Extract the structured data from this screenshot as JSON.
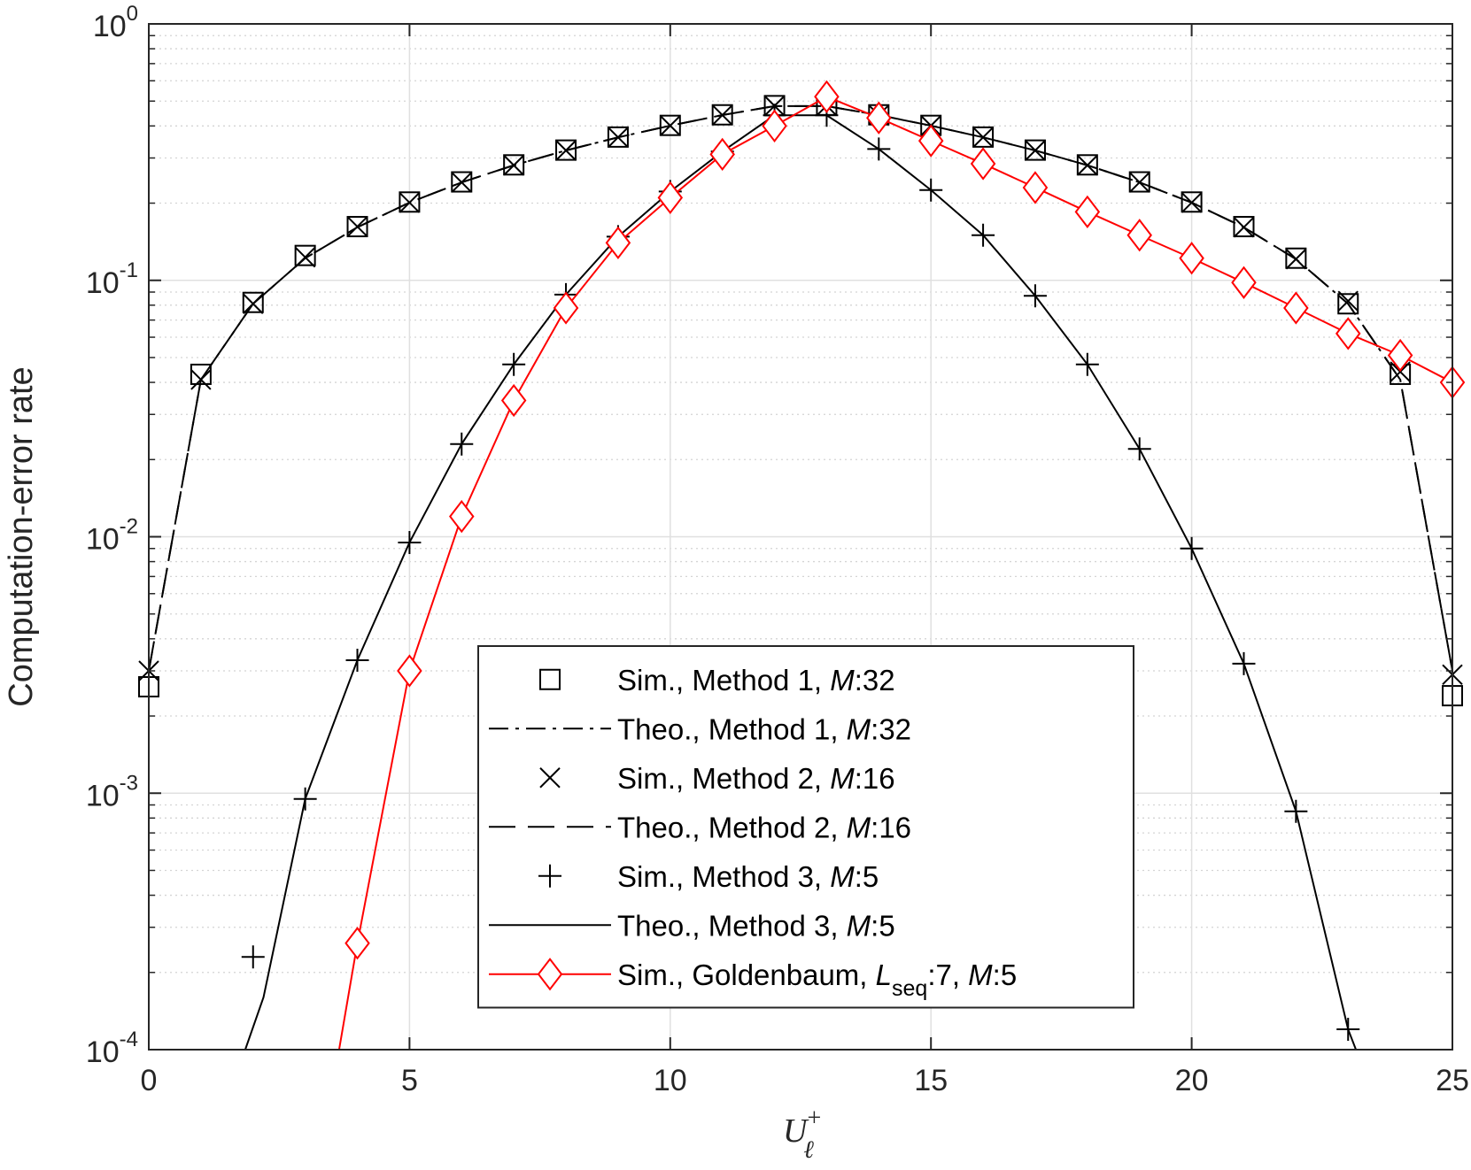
{
  "chart_data": {
    "type": "line",
    "xlabel": {
      "base": "U",
      "sub": "ℓ",
      "sup": "+"
    },
    "ylabel": "Computation-error rate",
    "xlim": [
      0,
      25
    ],
    "ylim": [
      0.0001,
      1
    ],
    "y_scale": "log",
    "grid": true,
    "legend_position": "bottom-center",
    "x_ticks": [
      0,
      5,
      10,
      15,
      20,
      25
    ],
    "x_tick_labels": [
      "0",
      "5",
      "10",
      "15",
      "20",
      "25"
    ],
    "y_ticks": [
      {
        "value": 1,
        "base": "10",
        "exp": "0"
      },
      {
        "value": 0.1,
        "base": "10",
        "exp": "-1"
      },
      {
        "value": 0.01,
        "base": "10",
        "exp": "-2"
      },
      {
        "value": 0.001,
        "base": "10",
        "exp": "-3"
      },
      {
        "value": 0.0001,
        "base": "10",
        "exp": "-4"
      }
    ],
    "series": [
      {
        "name": "Sim., Method 1, M:32",
        "legend": [
          {
            "t": "Sim., Method 1, "
          },
          {
            "t": "M",
            "i": true
          },
          {
            "t": ":32"
          }
        ],
        "color": "#000000",
        "line": "none",
        "marker": "square",
        "x": [
          0,
          1,
          2,
          3,
          4,
          5,
          6,
          7,
          8,
          9,
          10,
          11,
          12,
          13,
          14,
          15,
          16,
          17,
          18,
          19,
          20,
          21,
          22,
          23,
          24,
          25
        ],
        "y": [
          0.0026,
          0.043,
          0.082,
          0.125,
          0.162,
          0.202,
          0.242,
          0.282,
          0.322,
          0.362,
          0.402,
          0.442,
          0.48,
          0.482,
          0.442,
          0.402,
          0.362,
          0.322,
          0.282,
          0.242,
          0.202,
          0.162,
          0.122,
          0.081,
          0.043,
          0.0024
        ]
      },
      {
        "name": "Theo., Method 1, M:32",
        "legend": [
          {
            "t": "Theo., Method 1, "
          },
          {
            "t": "M",
            "i": true
          },
          {
            "t": ":32"
          }
        ],
        "color": "#000000",
        "line": "dashdot",
        "marker": "none",
        "x": [
          0,
          1,
          2,
          3,
          4,
          5,
          6,
          7,
          8,
          9,
          10,
          11,
          12,
          13,
          14,
          15,
          16,
          17,
          18,
          19,
          20,
          21,
          22,
          23,
          24,
          25
        ],
        "y": [
          0.003,
          0.041,
          0.081,
          0.122,
          0.161,
          0.201,
          0.241,
          0.281,
          0.321,
          0.361,
          0.401,
          0.441,
          0.478,
          0.478,
          0.441,
          0.401,
          0.361,
          0.321,
          0.281,
          0.241,
          0.201,
          0.161,
          0.121,
          0.081,
          0.041,
          0.003
        ]
      },
      {
        "name": "Sim., Method 2, M:16",
        "legend": [
          {
            "t": "Sim., Method 2, "
          },
          {
            "t": "M",
            "i": true
          },
          {
            "t": ":16"
          }
        ],
        "color": "#000000",
        "line": "none",
        "marker": "x",
        "x": [
          0,
          1,
          2,
          3,
          4,
          5,
          6,
          7,
          8,
          9,
          10,
          11,
          12,
          13,
          14,
          15,
          16,
          17,
          18,
          19,
          20,
          21,
          22,
          23,
          24,
          25
        ],
        "y": [
          0.003,
          0.041,
          0.081,
          0.123,
          0.162,
          0.201,
          0.241,
          0.281,
          0.321,
          0.361,
          0.401,
          0.441,
          0.479,
          0.48,
          0.441,
          0.401,
          0.361,
          0.321,
          0.281,
          0.241,
          0.201,
          0.161,
          0.121,
          0.083,
          0.044,
          0.0029
        ]
      },
      {
        "name": "Theo., Method 2, M:16",
        "legend": [
          {
            "t": "Theo., Method 2, "
          },
          {
            "t": "M",
            "i": true
          },
          {
            "t": ":16"
          }
        ],
        "color": "#000000",
        "line": "dashed",
        "marker": "none",
        "x": [
          0,
          1,
          2,
          3,
          4,
          5,
          6,
          7,
          8,
          9,
          10,
          11,
          12,
          13,
          14,
          15,
          16,
          17,
          18,
          19,
          20,
          21,
          22,
          23,
          24,
          25
        ],
        "y": [
          0.003,
          0.041,
          0.081,
          0.122,
          0.161,
          0.201,
          0.241,
          0.281,
          0.321,
          0.361,
          0.401,
          0.441,
          0.478,
          0.478,
          0.441,
          0.401,
          0.361,
          0.321,
          0.281,
          0.241,
          0.201,
          0.161,
          0.121,
          0.081,
          0.041,
          0.003
        ]
      },
      {
        "name": "Sim., Method 3, M:5",
        "legend": [
          {
            "t": "Sim., Method 3, "
          },
          {
            "t": "M",
            "i": true
          },
          {
            "t": ":5"
          }
        ],
        "color": "#000000",
        "line": "none",
        "marker": "plus",
        "x": [
          2,
          3,
          4,
          5,
          6,
          7,
          8,
          9,
          10,
          11,
          12,
          13,
          14,
          15,
          16,
          17,
          18,
          19,
          20,
          21,
          22,
          23
        ],
        "y": [
          0.00023,
          0.00095,
          0.0033,
          0.0095,
          0.023,
          0.047,
          0.088,
          0.148,
          0.222,
          0.318,
          0.44,
          0.44,
          0.325,
          0.225,
          0.15,
          0.087,
          0.047,
          0.022,
          0.009,
          0.0032,
          0.00085,
          0.00012
        ]
      },
      {
        "name": "Theo., Method 3, M:5",
        "legend": [
          {
            "t": "Theo., Method 3, "
          },
          {
            "t": "M",
            "i": true
          },
          {
            "t": ":5"
          }
        ],
        "color": "#000000",
        "line": "solid",
        "marker": "none",
        "x": [
          1.85,
          2.2,
          3,
          4,
          5,
          6,
          7,
          8,
          9,
          10,
          11,
          12,
          13,
          14,
          15,
          16,
          17,
          18,
          19,
          20,
          21,
          22,
          23,
          23.15
        ],
        "y": [
          0.0001,
          0.00016,
          0.00095,
          0.0033,
          0.0095,
          0.023,
          0.047,
          0.088,
          0.148,
          0.222,
          0.318,
          0.44,
          0.44,
          0.325,
          0.225,
          0.15,
          0.087,
          0.047,
          0.022,
          0.009,
          0.0032,
          0.00085,
          0.00012,
          0.0001
        ]
      },
      {
        "name": "Sim., Goldenbaum, Lseq:7, M:5",
        "legend": [
          {
            "t": "Sim., Goldenbaum, "
          },
          {
            "t": "L",
            "i": true
          },
          {
            "t": "seq",
            "sub": true
          },
          {
            "t": ":7, "
          },
          {
            "t": "M",
            "i": true
          },
          {
            "t": ":5"
          }
        ],
        "color": "#ff0000",
        "line": "solid",
        "marker": "diamond",
        "x": [
          3.65,
          4,
          5,
          6,
          7,
          8,
          9,
          10,
          11,
          12,
          13,
          14,
          15,
          16,
          17,
          18,
          19,
          20,
          21,
          22,
          23,
          24,
          25
        ],
        "y": [
          0.0001,
          0.00026,
          0.003,
          0.012,
          0.034,
          0.078,
          0.14,
          0.21,
          0.31,
          0.4,
          0.52,
          0.43,
          0.35,
          0.285,
          0.23,
          0.185,
          0.15,
          0.122,
          0.098,
          0.078,
          0.062,
          0.051,
          0.04
        ],
        "marker_from_index": 1
      }
    ]
  }
}
